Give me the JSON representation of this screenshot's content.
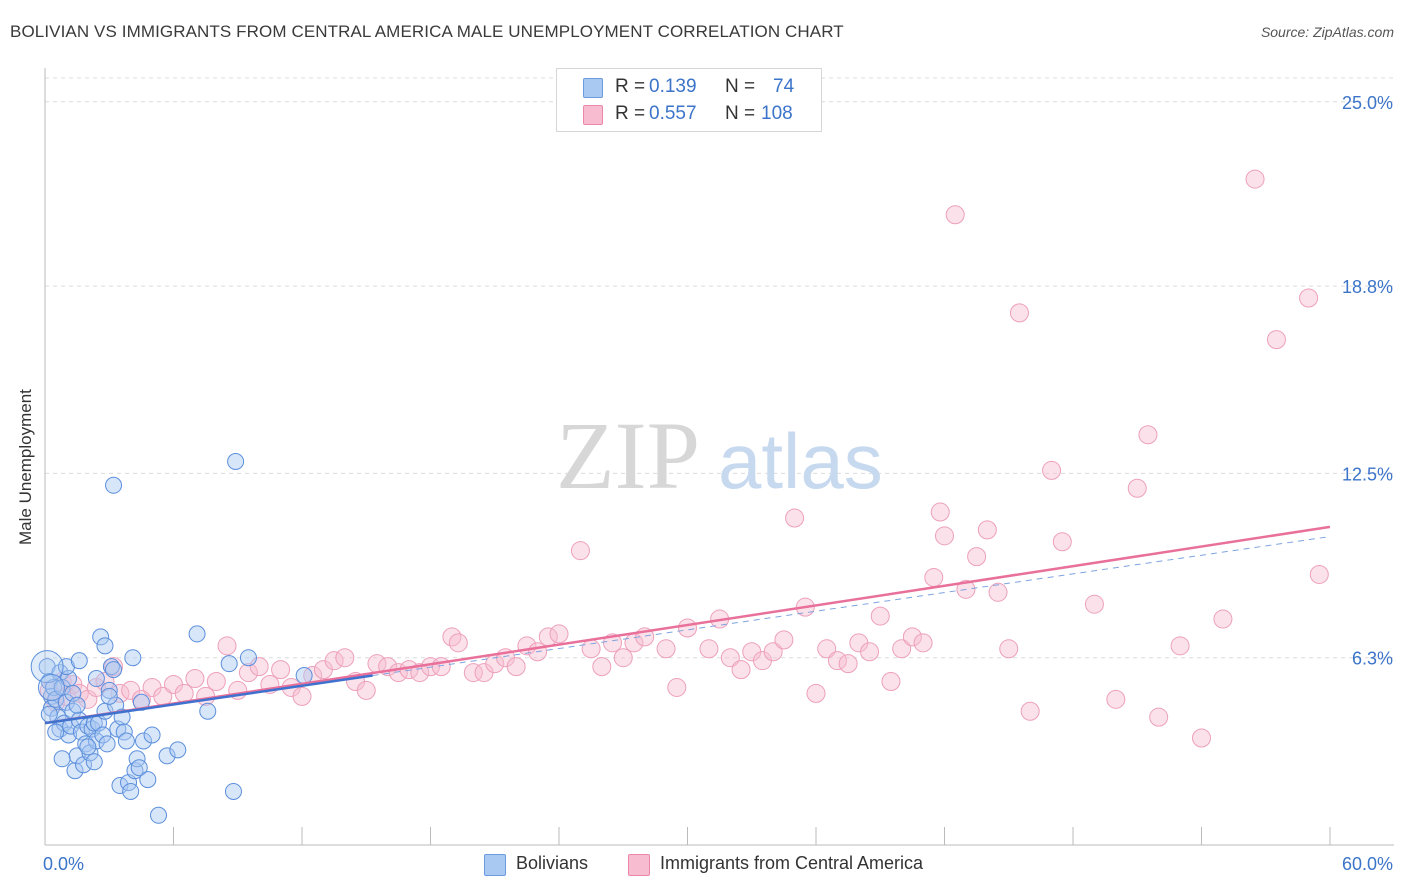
{
  "title": "BOLIVIAN VS IMMIGRANTS FROM CENTRAL AMERICA MALE UNEMPLOYMENT CORRELATION CHART",
  "source": "Source: ZipAtlas.com",
  "watermark": {
    "zip": "ZIP",
    "atlas": "atlas"
  },
  "legend": {
    "rows": [
      {
        "r_label": "R =",
        "r_value": "0.139",
        "n_label": "N =",
        "n_value": "74",
        "color": "#a9c8f2",
        "border": "#6b9be0"
      },
      {
        "r_label": "R =",
        "r_value": "0.557",
        "n_label": "N =",
        "n_value": "108",
        "color": "#f7bcd0",
        "border": "#ea88a8"
      }
    ]
  },
  "bottom_legend": [
    {
      "label": "Bolivians",
      "color": "#a9c8f2",
      "border": "#6b9be0"
    },
    {
      "label": "Immigrants from Central America",
      "color": "#f7bcd0",
      "border": "#ea88a8"
    }
  ],
  "chart_data": {
    "type": "scatter",
    "title": "BOLIVIAN VS IMMIGRANTS FROM CENTRAL AMERICA MALE UNEMPLOYMENT CORRELATION CHART",
    "xlabel": "",
    "ylabel": "Male Unemployment",
    "xlim": [
      0,
      60
    ],
    "ylim": [
      0,
      25.8
    ],
    "x_tick_labels": [
      "0.0%",
      "60.0%"
    ],
    "y_ticks": [
      6.3,
      12.5,
      18.8,
      25.0
    ],
    "y_tick_labels": [
      "6.3%",
      "12.5%",
      "18.8%",
      "25.0%"
    ],
    "grid": true,
    "legend_placement": "top-center",
    "colors": {
      "bolivians": "#4a7fd4",
      "central_america": "#e8709a"
    },
    "series": [
      {
        "name": "Bolivians",
        "trend": {
          "x": [
            0,
            15.3
          ],
          "y": [
            4.1,
            5.7
          ]
        },
        "points": [
          [
            0.1,
            6.0
          ],
          [
            0.2,
            5.5
          ],
          [
            0.3,
            5.0
          ],
          [
            0.3,
            4.6
          ],
          [
            0.4,
            5.3
          ],
          [
            0.5,
            4.9
          ],
          [
            0.6,
            4.3
          ],
          [
            0.7,
            3.9
          ],
          [
            0.7,
            5.8
          ],
          [
            0.8,
            5.3
          ],
          [
            0.9,
            4.1
          ],
          [
            1.0,
            4.8
          ],
          [
            1.1,
            3.7
          ],
          [
            1.1,
            5.6
          ],
          [
            1.2,
            4.0
          ],
          [
            1.3,
            4.5
          ],
          [
            1.3,
            5.1
          ],
          [
            1.4,
            2.5
          ],
          [
            1.5,
            3.0
          ],
          [
            1.6,
            4.2
          ],
          [
            1.7,
            3.8
          ],
          [
            1.8,
            2.7
          ],
          [
            1.9,
            3.4
          ],
          [
            2.0,
            4.0
          ],
          [
            2.1,
            3.1
          ],
          [
            2.2,
            3.9
          ],
          [
            2.3,
            4.1
          ],
          [
            2.3,
            2.8
          ],
          [
            2.4,
            3.5
          ],
          [
            2.5,
            4.1
          ],
          [
            2.6,
            7.0
          ],
          [
            2.7,
            3.7
          ],
          [
            2.8,
            4.5
          ],
          [
            2.9,
            3.4
          ],
          [
            3.0,
            5.2
          ],
          [
            3.1,
            6.0
          ],
          [
            3.2,
            5.9
          ],
          [
            3.3,
            4.7
          ],
          [
            3.4,
            3.9
          ],
          [
            3.5,
            2.0
          ],
          [
            3.2,
            12.1
          ],
          [
            3.6,
            4.3
          ],
          [
            3.7,
            3.8
          ],
          [
            3.8,
            3.5
          ],
          [
            3.9,
            2.1
          ],
          [
            4.0,
            1.8
          ],
          [
            4.1,
            6.3
          ],
          [
            4.2,
            2.5
          ],
          [
            4.3,
            2.9
          ],
          [
            4.4,
            2.6
          ],
          [
            4.6,
            3.5
          ],
          [
            4.8,
            2.2
          ],
          [
            5.0,
            3.7
          ],
          [
            5.3,
            1.0
          ],
          [
            5.7,
            3.0
          ],
          [
            6.2,
            3.2
          ],
          [
            7.1,
            7.1
          ],
          [
            7.6,
            4.5
          ],
          [
            8.6,
            6.1
          ],
          [
            8.8,
            1.8
          ],
          [
            8.9,
            12.9
          ],
          [
            9.5,
            6.3
          ],
          [
            12.1,
            5.7
          ],
          [
            1.5,
            4.7
          ],
          [
            2.0,
            3.3
          ],
          [
            0.5,
            3.8
          ],
          [
            1.0,
            6.0
          ],
          [
            2.8,
            6.7
          ],
          [
            3.0,
            5.0
          ],
          [
            4.5,
            4.8
          ],
          [
            0.2,
            4.4
          ],
          [
            0.8,
            2.9
          ],
          [
            1.6,
            6.2
          ],
          [
            2.4,
            5.6
          ]
        ]
      },
      {
        "name": "Immigrants from Central America",
        "trend": {
          "x": [
            0,
            60
          ],
          "y": [
            4.1,
            10.7
          ]
        },
        "points": [
          [
            0.2,
            5.2
          ],
          [
            0.5,
            4.8
          ],
          [
            0.8,
            5.5
          ],
          [
            1.0,
            5.0
          ],
          [
            1.3,
            5.4
          ],
          [
            1.6,
            5.1
          ],
          [
            2.0,
            4.9
          ],
          [
            2.4,
            5.3
          ],
          [
            2.8,
            5.5
          ],
          [
            3.2,
            6.0
          ],
          [
            3.5,
            5.1
          ],
          [
            4.0,
            5.2
          ],
          [
            4.5,
            4.9
          ],
          [
            5.0,
            5.3
          ],
          [
            5.5,
            5.0
          ],
          [
            6.0,
            5.4
          ],
          [
            6.5,
            5.1
          ],
          [
            7.0,
            5.6
          ],
          [
            7.5,
            5.0
          ],
          [
            8.0,
            5.5
          ],
          [
            8.5,
            6.7
          ],
          [
            9.0,
            5.2
          ],
          [
            9.5,
            5.8
          ],
          [
            10.0,
            6.0
          ],
          [
            10.5,
            5.4
          ],
          [
            11.0,
            5.9
          ],
          [
            11.5,
            5.3
          ],
          [
            12.0,
            5.0
          ],
          [
            12.5,
            5.7
          ],
          [
            13.0,
            5.9
          ],
          [
            13.5,
            6.2
          ],
          [
            14.0,
            6.3
          ],
          [
            14.5,
            5.5
          ],
          [
            15.0,
            5.2
          ],
          [
            15.5,
            6.1
          ],
          [
            16.0,
            6.0
          ],
          [
            16.5,
            5.8
          ],
          [
            17.0,
            5.9
          ],
          [
            17.5,
            5.8
          ],
          [
            18.0,
            6.0
          ],
          [
            18.5,
            6.0
          ],
          [
            19.0,
            7.0
          ],
          [
            19.3,
            6.8
          ],
          [
            20.0,
            5.8
          ],
          [
            20.5,
            5.8
          ],
          [
            21.0,
            6.1
          ],
          [
            21.5,
            6.3
          ],
          [
            22.0,
            6.0
          ],
          [
            22.5,
            6.7
          ],
          [
            23.0,
            6.5
          ],
          [
            23.5,
            7.0
          ],
          [
            24.0,
            7.1
          ],
          [
            25.0,
            9.9
          ],
          [
            25.5,
            6.6
          ],
          [
            26.0,
            6.0
          ],
          [
            26.5,
            6.8
          ],
          [
            27.0,
            6.3
          ],
          [
            27.5,
            6.8
          ],
          [
            28.0,
            7.0
          ],
          [
            29.0,
            6.6
          ],
          [
            29.5,
            5.3
          ],
          [
            30.0,
            7.3
          ],
          [
            31.0,
            6.6
          ],
          [
            31.5,
            7.6
          ],
          [
            32.0,
            6.3
          ],
          [
            32.5,
            5.9
          ],
          [
            33.0,
            6.5
          ],
          [
            33.5,
            6.2
          ],
          [
            34.0,
            6.5
          ],
          [
            34.5,
            6.9
          ],
          [
            35.0,
            11.0
          ],
          [
            35.5,
            8.0
          ],
          [
            36.0,
            5.1
          ],
          [
            36.5,
            6.6
          ],
          [
            37.0,
            6.2
          ],
          [
            37.5,
            6.1
          ],
          [
            38.0,
            6.8
          ],
          [
            38.5,
            6.5
          ],
          [
            39.0,
            7.7
          ],
          [
            39.5,
            5.5
          ],
          [
            40.0,
            6.6
          ],
          [
            40.5,
            7.0
          ],
          [
            41.0,
            6.8
          ],
          [
            41.5,
            9.0
          ],
          [
            41.8,
            11.2
          ],
          [
            42.0,
            10.4
          ],
          [
            42.5,
            21.2
          ],
          [
            43.0,
            8.6
          ],
          [
            43.5,
            9.7
          ],
          [
            44.0,
            10.6
          ],
          [
            44.5,
            8.5
          ],
          [
            45.0,
            6.6
          ],
          [
            45.5,
            17.9
          ],
          [
            46.0,
            4.5
          ],
          [
            47.0,
            12.6
          ],
          [
            47.5,
            10.2
          ],
          [
            49.0,
            8.1
          ],
          [
            50.0,
            4.9
          ],
          [
            51.0,
            12.0
          ],
          [
            51.5,
            13.8
          ],
          [
            52.0,
            4.3
          ],
          [
            53.0,
            6.7
          ],
          [
            54.0,
            3.6
          ],
          [
            55.0,
            7.6
          ],
          [
            56.5,
            22.4
          ],
          [
            57.5,
            17.0
          ],
          [
            59.0,
            18.4
          ],
          [
            59.5,
            9.1
          ]
        ]
      }
    ]
  }
}
